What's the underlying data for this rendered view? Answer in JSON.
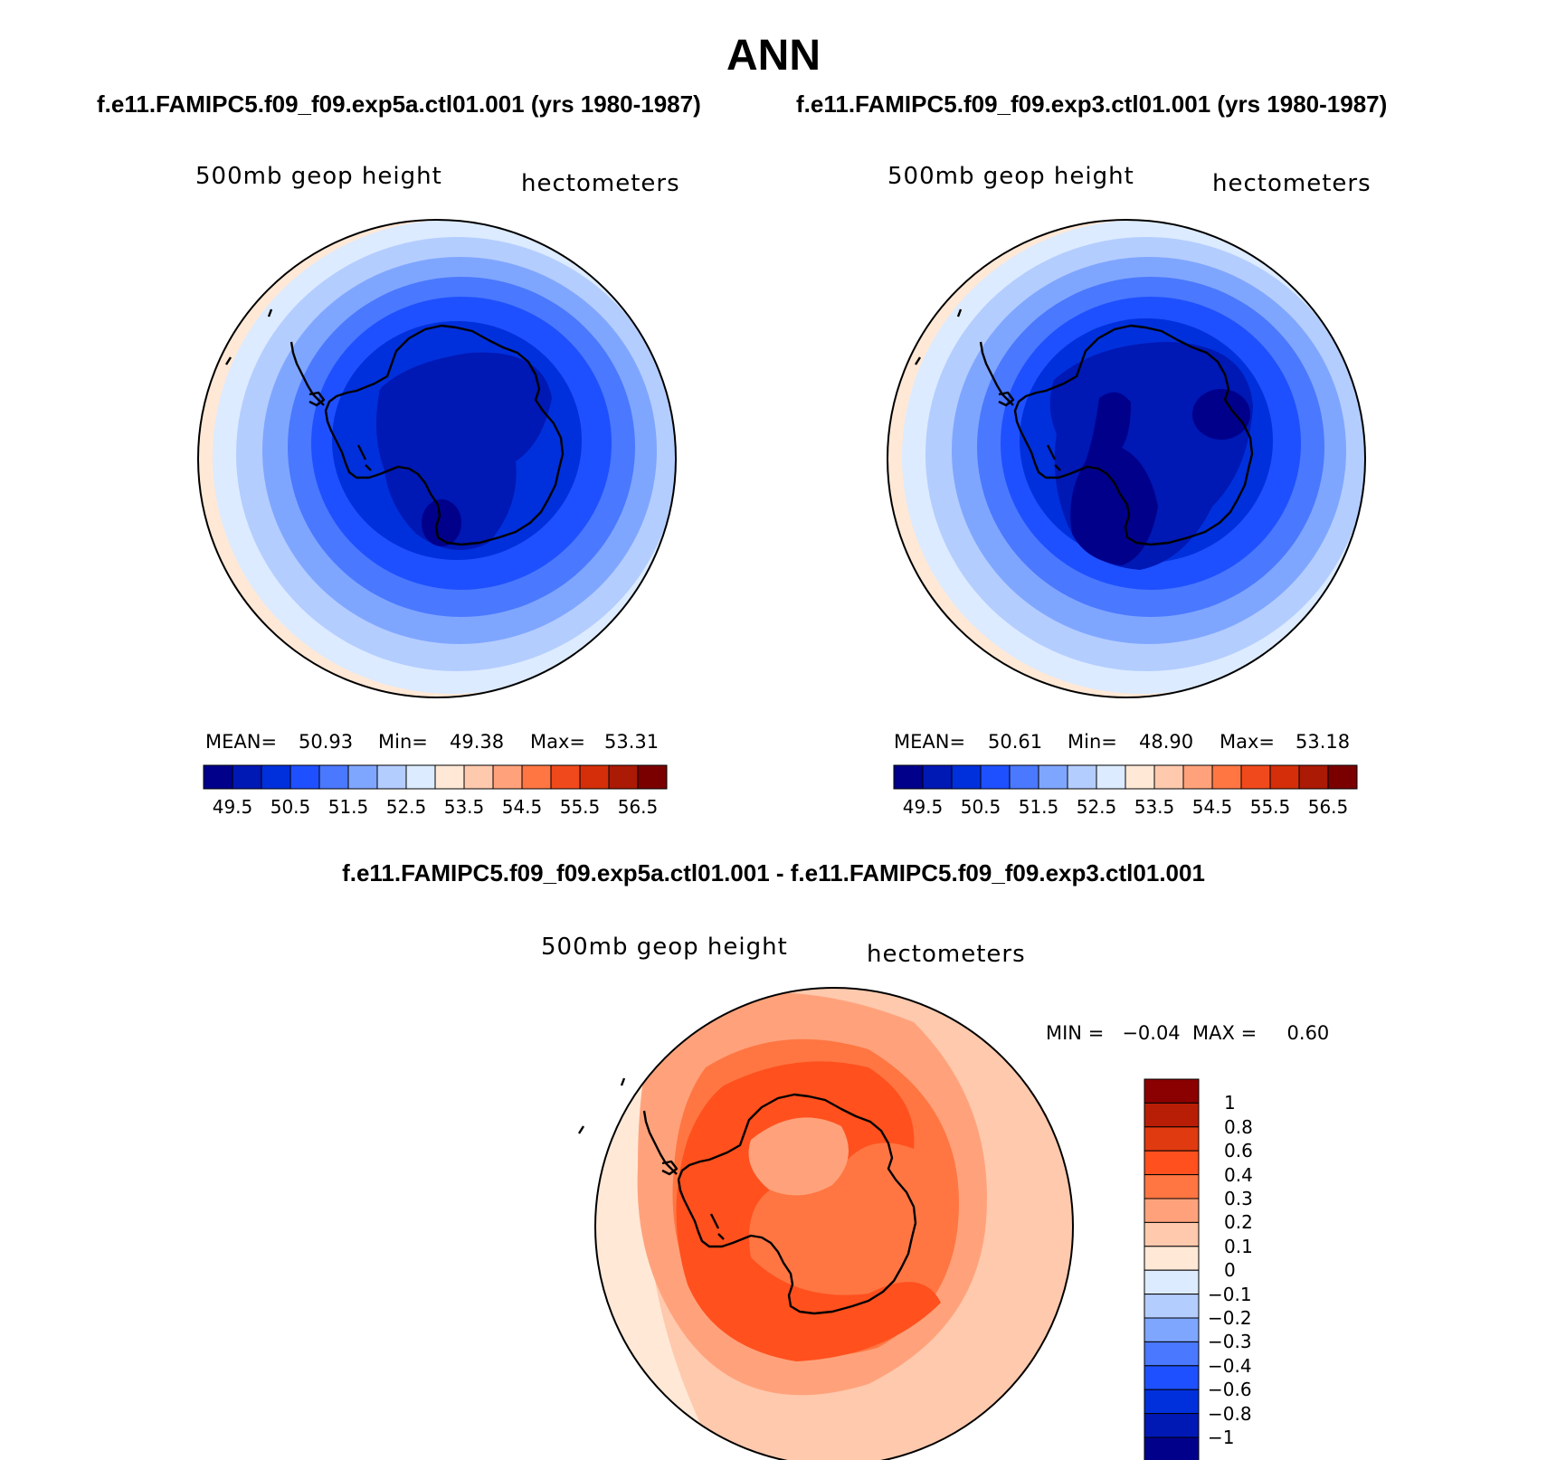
{
  "title": "ANN",
  "panels": [
    {
      "case": "f.e11.FAMIPC5.f09_f09.exp5a.ctl01.001 (yrs 1980-1987)",
      "variable": "500mb  geop  height",
      "units": "hectometers",
      "stats": {
        "mean_label": "MEAN=",
        "mean": "50.93",
        "min_label": "Min=",
        "min": "49.38",
        "max_label": "Max=",
        "max": "53.31"
      }
    },
    {
      "case": "f.e11.FAMIPC5.f09_f09.exp3.ctl01.001 (yrs 1980-1987)",
      "variable": "500mb  geop  height",
      "units": "hectometers",
      "stats": {
        "mean_label": "MEAN=",
        "mean": "50.61",
        "min_label": "Min=",
        "min": "48.90",
        "max_label": "Max=",
        "max": "53.18"
      }
    }
  ],
  "diff": {
    "title": "f.e11.FAMIPC5.f09_f09.exp5a.ctl01.001 - f.e11.FAMIPC5.f09_f09.exp3.ctl01.001",
    "variable": "500mb  geop  height",
    "units": "hectometers",
    "minmax": "MIN =   −0.04  MAX =     0.60"
  },
  "abs_colorbar": {
    "colors": [
      "#00008b",
      "#0018b4",
      "#0030dc",
      "#1e50ff",
      "#4a78ff",
      "#7fa6ff",
      "#b4cdff",
      "#dcebff",
      "#ffe8d6",
      "#ffc9ad",
      "#ffa27b",
      "#ff7642",
      "#f04a1c",
      "#d42f0a",
      "#aa1a05",
      "#7a0000"
    ],
    "labels": [
      "49.5",
      "50.5",
      "51.5",
      "52.5",
      "53.5",
      "54.5",
      "55.5",
      "56.5"
    ]
  },
  "diff_colorbar": {
    "colors": [
      "#00008b",
      "#0018b4",
      "#0030dc",
      "#1e50ff",
      "#4a78ff",
      "#7fa6ff",
      "#b4cdff",
      "#dcebff",
      "#ffe8d6",
      "#ffc9ad",
      "#ffa27b",
      "#ff7642",
      "#ff501e",
      "#e03a10",
      "#b81e06",
      "#8b0000"
    ],
    "labels": [
      "1",
      "0.8",
      "0.6",
      "0.4",
      "0.3",
      "0.2",
      "0.1",
      "0",
      "−0.1",
      "−0.2",
      "−0.3",
      "−0.4",
      "−0.6",
      "−0.8",
      "−1"
    ]
  }
}
